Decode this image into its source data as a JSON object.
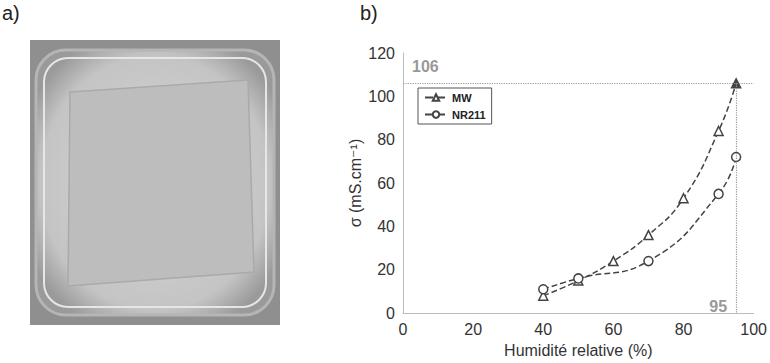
{
  "panel_labels": [
    "a)",
    "b)"
  ],
  "chart_data": {
    "type": "line",
    "x_label": "Humidité relative (%)",
    "y_label": "σ (mS.cm⁻¹)",
    "xlim": [
      0,
      100
    ],
    "xticks": [
      0,
      20,
      40,
      60,
      80,
      100
    ],
    "ylim": [
      0,
      120
    ],
    "yticks": [
      0,
      20,
      40,
      60,
      80,
      100,
      120
    ],
    "grid": false,
    "legend": "upper left",
    "series": [
      {
        "name": "MW",
        "color": "#444444",
        "marker": "triangle",
        "line_style": "dashed",
        "x": [
          40,
          50,
          60,
          70,
          80,
          90,
          95
        ],
        "values": [
          8,
          15,
          24,
          36,
          53,
          84,
          106
        ]
      },
      {
        "name": "NR211",
        "color": "#444444",
        "marker": "circle",
        "line_style": "dashed",
        "x": [
          40,
          50,
          70,
          90,
          95
        ],
        "values": [
          11,
          16,
          24,
          55,
          72
        ]
      }
    ],
    "annotations": [
      {
        "text": "106",
        "x": 95,
        "y": 106,
        "color": "#999999"
      },
      {
        "text": "95",
        "x": 95,
        "y": 106,
        "color": "#999999"
      }
    ]
  }
}
